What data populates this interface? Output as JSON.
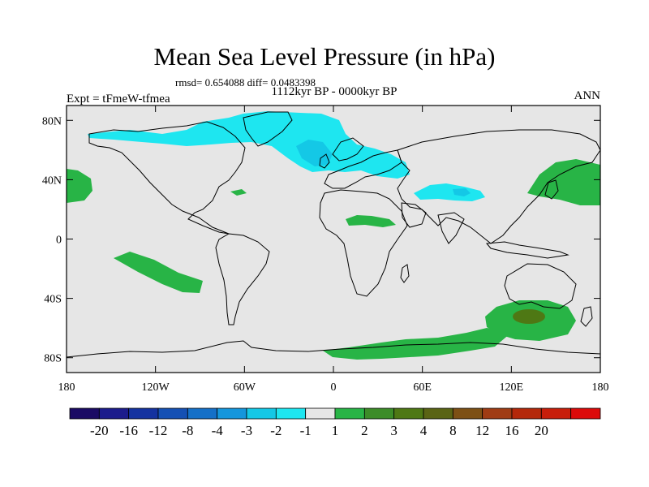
{
  "title": "Mean Sea Level Pressure (in hPa)",
  "stats": "rmsd= 0.654088 diff= 0.0483398",
  "period": "1112kyr BP - 0000kyr BP",
  "experiment": "Expt = tFmeW-tfmea",
  "season": "ANN",
  "map_data": {
    "type": "contour-map",
    "projection": "cylindrical-equidistant",
    "lon_range": [
      -180,
      180
    ],
    "lat_range": [
      -90,
      90
    ],
    "x_ticks": [
      {
        "lon": -180,
        "label": "180"
      },
      {
        "lon": -120,
        "label": "120W"
      },
      {
        "lon": -60,
        "label": "60W"
      },
      {
        "lon": 0,
        "label": "0"
      },
      {
        "lon": 60,
        "label": "60E"
      },
      {
        "lon": 120,
        "label": "120E"
      },
      {
        "lon": 180,
        "label": "180"
      }
    ],
    "y_ticks": [
      {
        "lat": 80,
        "label": "80N"
      },
      {
        "lat": 40,
        "label": "40N"
      },
      {
        "lat": 0,
        "label": "0"
      },
      {
        "lat": -40,
        "label": "40S"
      },
      {
        "lat": -80,
        "label": "80S"
      }
    ],
    "colorbar": {
      "colors": [
        "#1a0a64",
        "#1c1c8c",
        "#1432a0",
        "#1450b4",
        "#1470c8",
        "#1496dc",
        "#14c8e6",
        "#1ee6f0",
        "#e6e6e6",
        "#28b446",
        "#3c8c28",
        "#4e7814",
        "#5a6414",
        "#7d5014",
        "#a03c14",
        "#b4280a",
        "#c81e0a",
        "#dc0a0a"
      ],
      "labels": [
        "-20",
        "-16",
        "-12",
        "-8",
        "-4",
        "-3",
        "-2",
        "-1",
        "1",
        "2",
        "3",
        "4",
        "8",
        "12",
        "16",
        "20"
      ]
    }
  }
}
